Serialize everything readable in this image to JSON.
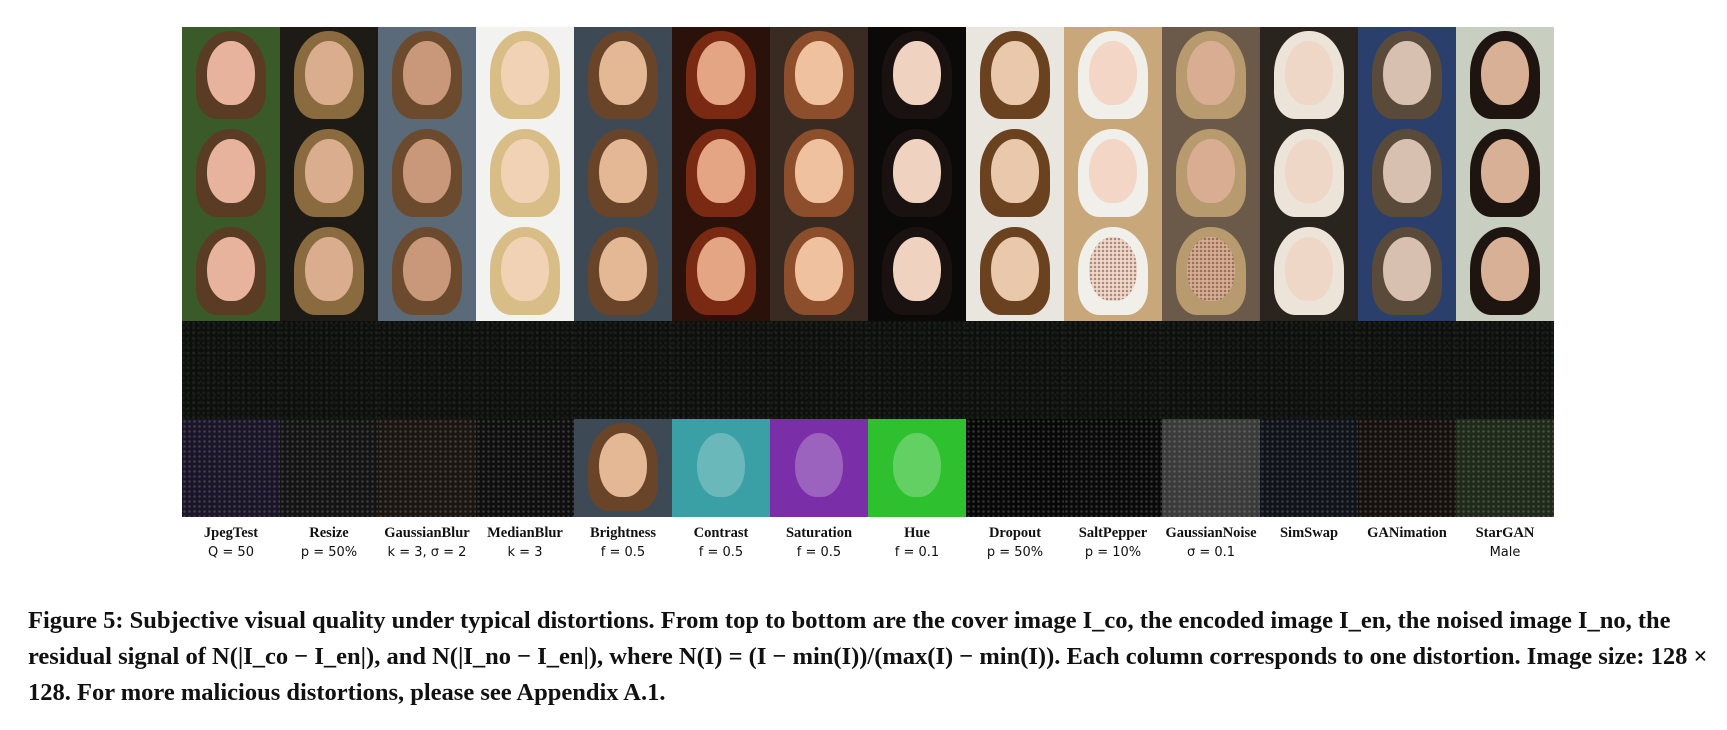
{
  "columns": [
    {
      "name": "JpegTest",
      "param": "Q = 50",
      "skin": "#e8b39c",
      "hair": "#5a3b24",
      "bg": "#3b5a2a"
    },
    {
      "name": "Resize",
      "param": "p = 50%",
      "skin": "#d9ad8e",
      "hair": "#8a6a3f",
      "bg": "#1e1a16"
    },
    {
      "name": "GaussianBlur",
      "param": "k = 3, σ = 2",
      "skin": "#c9987a",
      "hair": "#6b4a2e",
      "bg": "#5b6a78"
    },
    {
      "name": "MedianBlur",
      "param": "k = 3",
      "skin": "#f1d2b5",
      "hair": "#d9bd86",
      "bg": "#f2f2f0"
    },
    {
      "name": "Brightness",
      "param": "f = 0.5",
      "skin": "#e4b895",
      "hair": "#6a4428",
      "bg": "#3d4a55"
    },
    {
      "name": "Contrast",
      "param": "f = 0.5",
      "skin": "#e3a583",
      "hair": "#7a2a12",
      "bg": "#2a120a"
    },
    {
      "name": "Saturation",
      "param": "f = 0.5",
      "skin": "#f0c19e",
      "hair": "#8d4e2c",
      "bg": "#3a2b22"
    },
    {
      "name": "Hue",
      "param": "f = 0.1",
      "skin": "#efd2bf",
      "hair": "#1a1210",
      "bg": "#0c0a09"
    },
    {
      "name": "Dropout",
      "param": "p = 50%",
      "skin": "#e9c8ac",
      "hair": "#6b4220",
      "bg": "#e9e6e0"
    },
    {
      "name": "SaltPepper",
      "param": "p = 10%",
      "skin": "#f3d6c6",
      "hair": "#f1efe9",
      "bg": "#c8a77b"
    },
    {
      "name": "GaussianNoise",
      "param": "σ = 0.1",
      "skin": "#d8ad92",
      "hair": "#b79a6e",
      "bg": "#6b5a4a"
    },
    {
      "name": "SimSwap",
      "param": "",
      "skin": "#efd7c8",
      "hair": "#ece4d8",
      "bg": "#2a241f"
    },
    {
      "name": "GANimation",
      "param": "",
      "skin": "#d8c0b0",
      "hair": "#5a4a3a",
      "bg": "#2a3f6b"
    },
    {
      "name": "StarGAN",
      "param": "Male",
      "skin": "#d8b095",
      "hair": "#1e1410",
      "bg": "#c9cfc0"
    }
  ],
  "row5_tints": [
    "#1a1528",
    "#141414",
    "#1b1612",
    "#0f0f0f",
    "BRIGHT",
    "#3aa0a5",
    "#7a2ea8",
    "#2fc02f",
    "#080808",
    "#0a0a0a",
    "#3b3b3b",
    "#101319",
    "#16110e",
    "#1f2a1a"
  ],
  "caption": "Figure 5: Subjective visual quality under typical distortions. From top to bottom are the cover image I_co, the encoded image I_en, the noised image I_no, the residual signal of N(|I_co − I_en|), and N(|I_no − I_en|), where N(I) = (I − min(I))/(max(I) − min(I)). Each column corresponds to one distortion. Image size: 128 × 128. For more malicious distortions, please see Appendix A.1."
}
